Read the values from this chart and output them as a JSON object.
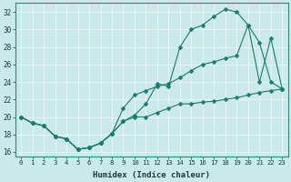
{
  "xlabel": "Humidex (Indice chaleur)",
  "xlim": [
    -0.5,
    23.5
  ],
  "ylim": [
    15.5,
    33.0
  ],
  "yticks": [
    16,
    18,
    20,
    22,
    24,
    26,
    28,
    30,
    32
  ],
  "xticks": [
    0,
    1,
    2,
    3,
    4,
    5,
    6,
    7,
    8,
    9,
    10,
    11,
    12,
    13,
    14,
    15,
    16,
    17,
    18,
    19,
    20,
    21,
    22,
    23
  ],
  "bg_color": "#cce9e9",
  "grid_color": "#e8f5f5",
  "line_color": "#1a7a6e",
  "line1_x": [
    0,
    1,
    2,
    3,
    4,
    5,
    6,
    7,
    8,
    9,
    10,
    11,
    12,
    13,
    14,
    15,
    16,
    17,
    18,
    19,
    20,
    21,
    22,
    23
  ],
  "line1_y": [
    20.0,
    19.3,
    19.0,
    17.8,
    17.5,
    16.3,
    16.5,
    17.0,
    18.1,
    19.5,
    20.0,
    20.0,
    20.5,
    21.0,
    21.5,
    21.5,
    21.7,
    21.8,
    22.0,
    22.2,
    22.5,
    22.8,
    23.0,
    23.2
  ],
  "line2_x": [
    0,
    1,
    2,
    3,
    4,
    5,
    6,
    7,
    8,
    9,
    10,
    11,
    12,
    13,
    14,
    15,
    16,
    17,
    18,
    19,
    20,
    21,
    22,
    23
  ],
  "line2_y": [
    20.0,
    19.3,
    19.0,
    17.8,
    17.5,
    16.3,
    16.5,
    17.0,
    18.1,
    21.0,
    22.5,
    23.0,
    23.5,
    23.8,
    24.5,
    25.3,
    26.0,
    26.3,
    26.7,
    27.0,
    30.5,
    28.5,
    24.0,
    23.2
  ],
  "line3_x": [
    0,
    1,
    2,
    3,
    4,
    5,
    6,
    7,
    8,
    9,
    10,
    11,
    12,
    13,
    14,
    15,
    16,
    17,
    18,
    19,
    20,
    21,
    22,
    23
  ],
  "line3_y": [
    20.0,
    19.3,
    19.0,
    17.8,
    17.5,
    16.3,
    16.5,
    17.0,
    18.1,
    19.5,
    20.2,
    21.5,
    23.8,
    23.5,
    28.0,
    30.0,
    30.5,
    31.5,
    32.3,
    32.0,
    30.5,
    24.0,
    29.0,
    23.2
  ]
}
